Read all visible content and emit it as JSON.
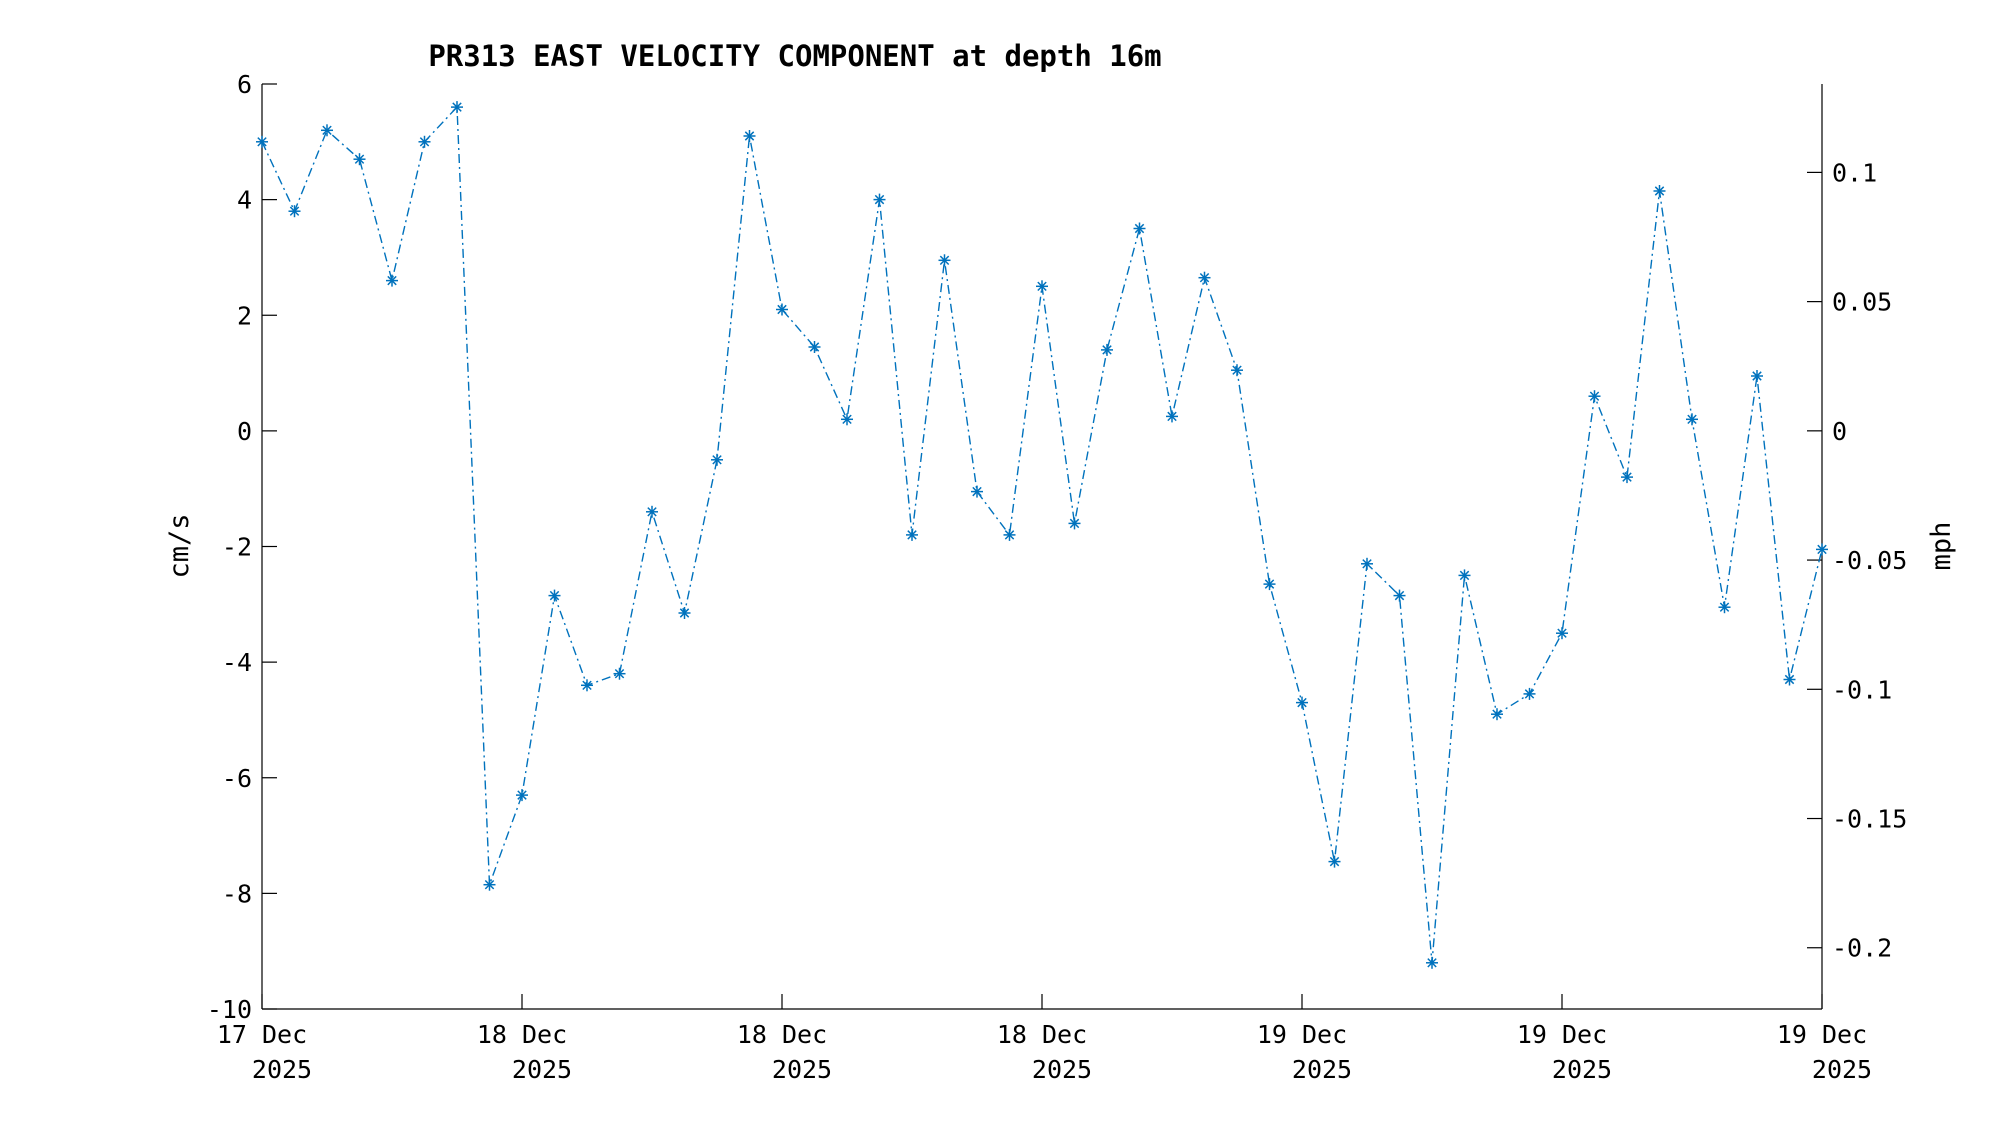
{
  "chart_data": {
    "type": "line",
    "title": "PR313 EAST VELOCITY COMPONENT at depth 16m",
    "ylabel": "cm/s",
    "ylabel_right": "mph",
    "ylim": [
      -10,
      6
    ],
    "yticks": [
      -10,
      -8,
      -6,
      -4,
      -2,
      0,
      2,
      4,
      6
    ],
    "ylim_right": [
      -0.2237,
      0.1342
    ],
    "yticks_right": [
      -0.2,
      -0.15,
      -0.1,
      -0.05,
      0,
      0.05,
      0.1
    ],
    "yticks_right_labels": [
      "-0.2",
      "-0.15",
      "-0.1",
      "-0.05",
      "0",
      "0.05",
      "0.1"
    ],
    "xlim": [
      0,
      48
    ],
    "xticks": [
      {
        "x": 0,
        "line1": "17 Dec",
        "line2": "2025"
      },
      {
        "x": 8,
        "line1": "18 Dec",
        "line2": "2025"
      },
      {
        "x": 16,
        "line1": "18 Dec",
        "line2": "2025"
      },
      {
        "x": 24,
        "line1": "18 Dec",
        "line2": "2025"
      },
      {
        "x": 32,
        "line1": "19 Dec",
        "line2": "2025"
      },
      {
        "x": 40,
        "line1": "19 Dec",
        "line2": "2025"
      },
      {
        "x": 48,
        "line1": "19 Dec",
        "line2": "2025"
      }
    ],
    "grid": false,
    "line_style": "dash-dot",
    "marker": "asterisk",
    "color": "#0072BD",
    "series": [
      {
        "values": [
          5.0,
          3.8,
          5.2,
          4.7,
          2.6,
          5.0,
          5.6,
          -7.85,
          -6.3,
          -2.85,
          -4.4,
          -4.2,
          -1.4,
          -3.15,
          -0.5,
          5.1,
          2.1,
          1.45,
          0.2,
          4.0,
          -1.8,
          2.95,
          -1.05,
          -1.8,
          2.5,
          -1.6,
          1.4,
          3.5,
          0.25,
          2.65,
          1.05,
          -2.65,
          -4.7,
          -7.45,
          -2.3,
          -2.85,
          -9.2,
          -2.5,
          -4.9,
          -4.55,
          -3.5,
          0.6,
          -0.8,
          4.15,
          0.2,
          -3.05,
          0.95,
          -4.3,
          -2.05
        ]
      }
    ]
  }
}
